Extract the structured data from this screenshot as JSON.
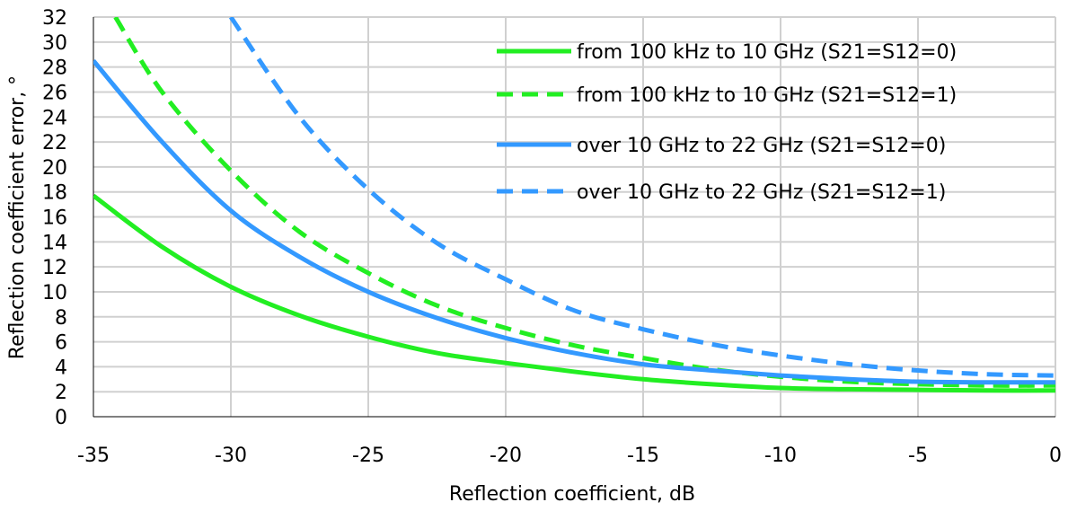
{
  "chart_data": {
    "type": "line",
    "title": "",
    "xlabel": "Reflection coefficient, dB",
    "ylabel": "Reflection coefficient error, °",
    "xlim": [
      -35,
      0
    ],
    "ylim": [
      0,
      32
    ],
    "xticks": [
      -35,
      -30,
      -25,
      -20,
      -15,
      -10,
      -5,
      0
    ],
    "yticks": [
      0,
      2,
      4,
      6,
      8,
      10,
      12,
      14,
      16,
      18,
      20,
      22,
      24,
      26,
      28,
      30,
      32
    ],
    "grid": "vertical and horizontal",
    "legend_position": "top-right",
    "series": [
      {
        "name": "from 100 kHz to 10 GHz (S21=S12=0)",
        "color": "#22ee22",
        "dash": "solid",
        "x": [
          -35,
          -32.5,
          -30,
          -27.5,
          -25,
          -22.5,
          -20,
          -17.5,
          -15,
          -12.5,
          -10,
          -7.5,
          -5,
          -2.5,
          0
        ],
        "y": [
          17.7,
          13.6,
          10.4,
          8.1,
          6.4,
          5.1,
          4.3,
          3.6,
          3.0,
          2.6,
          2.3,
          2.2,
          2.15,
          2.1,
          2.1
        ]
      },
      {
        "name": "from 100 kHz to 10 GHz (S21=S12=1)",
        "color": "#22ee22",
        "dash": "dashed",
        "x": [
          -34.2,
          -32.5,
          -30,
          -27.5,
          -25,
          -22.5,
          -20,
          -17.5,
          -15,
          -12.5,
          -10,
          -7.5,
          -5,
          -2.5,
          0
        ],
        "y": [
          32,
          26.0,
          19.7,
          14.8,
          11.5,
          8.9,
          7.1,
          5.7,
          4.7,
          3.8,
          3.2,
          2.8,
          2.6,
          2.5,
          2.5
        ]
      },
      {
        "name": "over 10 GHz to 22 GHz (S21=S12=0)",
        "color": "#3399ff",
        "dash": "solid",
        "x": [
          -35,
          -32.5,
          -30,
          -27.5,
          -25,
          -22.5,
          -20,
          -17.5,
          -15,
          -12.5,
          -10,
          -7.5,
          -5,
          -2.5,
          0
        ],
        "y": [
          28.5,
          22.0,
          16.5,
          12.8,
          10.0,
          7.9,
          6.3,
          5.1,
          4.2,
          3.7,
          3.3,
          3.0,
          2.8,
          2.75,
          2.75
        ]
      },
      {
        "name": "over 10 GHz to 22 GHz (S21=S12=1)",
        "color": "#3399ff",
        "dash": "dashed",
        "x": [
          -30,
          -27.5,
          -25,
          -22.5,
          -20,
          -17.5,
          -15,
          -12.5,
          -10,
          -7.5,
          -5,
          -2.5,
          0
        ],
        "y": [
          32,
          24.0,
          18.2,
          13.9,
          11.0,
          8.5,
          7.0,
          5.8,
          4.9,
          4.2,
          3.7,
          3.4,
          3.3
        ]
      }
    ]
  }
}
